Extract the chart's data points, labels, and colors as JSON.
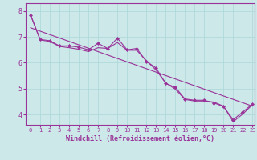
{
  "title": "",
  "xlabel": "Windchill (Refroidissement éolien,°C)",
  "background_color": "#cce8e8",
  "line_color": "#993399",
  "marker": "D",
  "markersize": 2.0,
  "linewidth": 0.8,
  "xlim": [
    -0.5,
    23.2
  ],
  "ylim": [
    3.6,
    8.3
  ],
  "yticks": [
    4,
    5,
    6,
    7,
    8
  ],
  "ytick_labels": [
    "4",
    "5",
    "6",
    "7",
    "8"
  ],
  "xticks": [
    0,
    1,
    2,
    3,
    4,
    5,
    6,
    7,
    8,
    9,
    10,
    11,
    12,
    13,
    14,
    15,
    16,
    17,
    18,
    19,
    20,
    21,
    22,
    23
  ],
  "series": [
    [
      0,
      7.85
    ],
    [
      1,
      6.9
    ],
    [
      2,
      6.85
    ],
    [
      3,
      6.65
    ],
    [
      4,
      6.65
    ],
    [
      5,
      6.6
    ],
    [
      6,
      6.5
    ],
    [
      7,
      6.75
    ],
    [
      8,
      6.55
    ],
    [
      9,
      6.95
    ],
    [
      10,
      6.5
    ],
    [
      11,
      6.55
    ],
    [
      12,
      6.05
    ],
    [
      13,
      5.8
    ],
    [
      14,
      5.2
    ],
    [
      15,
      5.05
    ],
    [
      16,
      4.6
    ],
    [
      17,
      4.55
    ],
    [
      18,
      4.55
    ],
    [
      19,
      4.45
    ],
    [
      20,
      4.3
    ],
    [
      21,
      3.8
    ],
    [
      22,
      4.1
    ],
    [
      23,
      4.4
    ]
  ],
  "series2": [
    [
      0,
      7.85
    ],
    [
      1,
      6.88
    ],
    [
      2,
      6.82
    ],
    [
      3,
      6.63
    ],
    [
      4,
      6.58
    ],
    [
      5,
      6.52
    ],
    [
      6,
      6.43
    ],
    [
      7,
      6.58
    ],
    [
      8,
      6.55
    ],
    [
      9,
      6.78
    ],
    [
      10,
      6.48
    ],
    [
      11,
      6.48
    ],
    [
      12,
      6.08
    ],
    [
      13,
      5.72
    ],
    [
      14,
      5.22
    ],
    [
      15,
      4.98
    ],
    [
      16,
      4.58
    ],
    [
      17,
      4.52
    ],
    [
      18,
      4.52
    ],
    [
      19,
      4.48
    ],
    [
      20,
      4.32
    ],
    [
      21,
      3.72
    ],
    [
      22,
      4.02
    ],
    [
      23,
      4.38
    ]
  ],
  "regression_line": [
    [
      0,
      7.35
    ],
    [
      23,
      4.32
    ]
  ],
  "grid_color": "#aad8d8",
  "tick_fontsize": 5.0,
  "xlabel_fontsize": 6.0
}
